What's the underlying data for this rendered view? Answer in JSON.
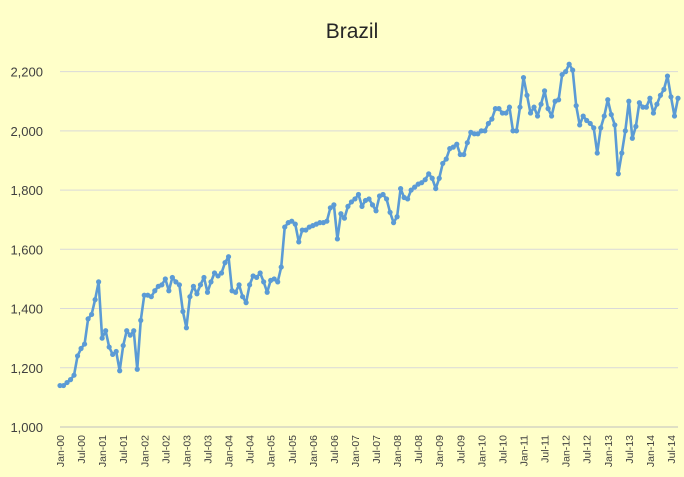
{
  "chart_data": {
    "type": "line",
    "title": "Brazil",
    "xlabel": "",
    "ylabel": "",
    "ylim": [
      1000,
      2300
    ],
    "yticks": [
      1000,
      1200,
      1400,
      1600,
      1800,
      2000,
      2200
    ],
    "ytick_labels": [
      "1,000",
      "1,200",
      "1,400",
      "1,600",
      "1,800",
      "2,000",
      "2,200"
    ],
    "xtick_labels": [
      "Jan-00",
      "Jul-00",
      "Jan-01",
      "Jul-01",
      "Jan-02",
      "Jul-02",
      "Jan-03",
      "Jul-03",
      "Jan-04",
      "Jul-04",
      "Jan-05",
      "Jul-05",
      "Jan-06",
      "Jul-06",
      "Jan-07",
      "Jul-07",
      "Jan-08",
      "Jul-08",
      "Jan-09",
      "Jul-09",
      "Jan-10",
      "Jul-10",
      "Jan-11",
      "Jul-11",
      "Jan-12",
      "Jul-12",
      "Jan-13",
      "Jul-13",
      "Jan-14",
      "Jul-14"
    ],
    "grid": true,
    "legend": "none",
    "line_color": "#5B9BD5",
    "series": [
      {
        "values": [
          1140,
          1140,
          1150,
          1160,
          1175,
          1240,
          1265,
          1280,
          1365,
          1380,
          1430,
          1490,
          1300,
          1325,
          1270,
          1245,
          1255,
          1190,
          1275,
          1325,
          1310,
          1325,
          1195,
          1360,
          1445,
          1445,
          1440,
          1460,
          1475,
          1480,
          1500,
          1460,
          1505,
          1490,
          1480,
          1390,
          1335,
          1440,
          1475,
          1450,
          1480,
          1505,
          1455,
          1490,
          1520,
          1510,
          1520,
          1555,
          1575,
          1460,
          1455,
          1480,
          1440,
          1420,
          1480,
          1510,
          1505,
          1520,
          1490,
          1455,
          1495,
          1500,
          1490,
          1540,
          1675,
          1690,
          1695,
          1685,
          1625,
          1665,
          1665,
          1675,
          1680,
          1685,
          1690,
          1690,
          1695,
          1740,
          1750,
          1635,
          1720,
          1705,
          1745,
          1760,
          1770,
          1785,
          1745,
          1765,
          1770,
          1750,
          1730,
          1780,
          1785,
          1770,
          1725,
          1690,
          1710,
          1805,
          1775,
          1770,
          1800,
          1810,
          1820,
          1825,
          1835,
          1855,
          1840,
          1805,
          1840,
          1890,
          1905,
          1940,
          1945,
          1955,
          1920,
          1920,
          1960,
          1995,
          1990,
          1990,
          2000,
          2000,
          2025,
          2040,
          2075,
          2075,
          2060,
          2060,
          2080,
          2000,
          2000,
          2080,
          2180,
          2120,
          2060,
          2080,
          2050,
          2090,
          2135,
          2075,
          2050,
          2100,
          2105,
          2190,
          2200,
          2225,
          2205,
          2085,
          2020,
          2050,
          2035,
          2025,
          2010,
          1925,
          2010,
          2050,
          2105,
          2055,
          2020,
          1855,
          1925,
          2000,
          2100,
          1975,
          2015,
          2095,
          2080,
          2080,
          2110,
          2060,
          2090,
          2120,
          2140,
          2185,
          2115,
          2050,
          2110
        ]
      }
    ]
  }
}
